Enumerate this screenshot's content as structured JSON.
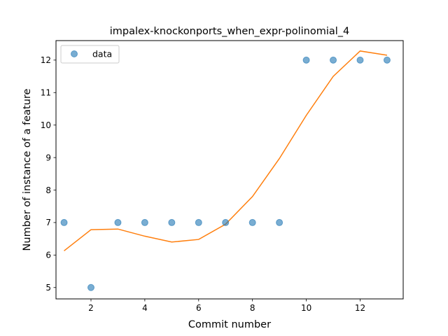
{
  "chart_data": {
    "type": "scatter",
    "title": "impalex-knockonports_when_expr-polinomial_4",
    "xlabel": "Commit number",
    "ylabel": "Number of instance of a feature",
    "xlim": [
      0.7,
      13.6
    ],
    "ylim": [
      4.65,
      12.6
    ],
    "xticks": [
      2,
      4,
      6,
      8,
      10,
      12
    ],
    "yticks": [
      5,
      6,
      7,
      8,
      9,
      10,
      11,
      12
    ],
    "grid": false,
    "legend_position": "top-left",
    "series": [
      {
        "name": "data",
        "kind": "scatter",
        "color": "#1f77b4",
        "x": [
          1,
          2,
          3,
          4,
          5,
          6,
          7,
          8,
          9,
          10,
          11,
          12,
          13
        ],
        "y": [
          7,
          5,
          7,
          7,
          7,
          7,
          7,
          7,
          7,
          12,
          12,
          12,
          12
        ]
      },
      {
        "kind": "line",
        "color": "#ff7f0e",
        "x": [
          1,
          2,
          3,
          4,
          5,
          6,
          7,
          8,
          9,
          10,
          11,
          12,
          13
        ],
        "y": [
          6.13,
          6.78,
          6.8,
          6.58,
          6.4,
          6.48,
          6.95,
          7.8,
          8.97,
          10.3,
          11.5,
          12.28,
          12.15
        ]
      }
    ]
  }
}
